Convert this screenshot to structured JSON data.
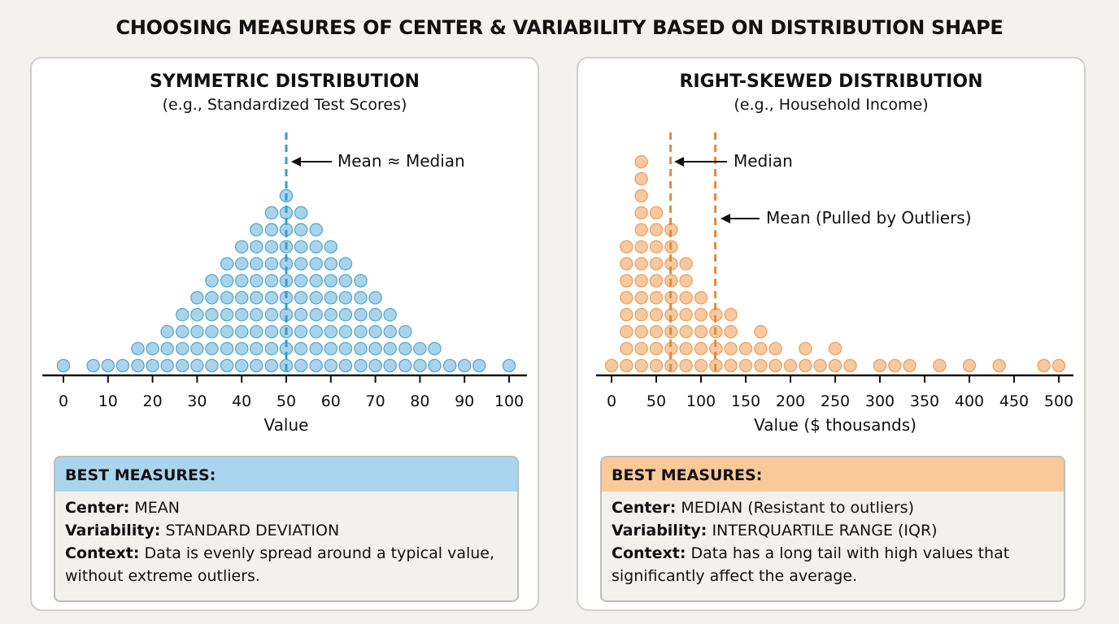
{
  "title": "CHOOSING MEASURES OF CENTER & VARIABILITY BASED ON DISTRIBUTION SHAPE",
  "colors": {
    "symmetric_fill": "#a8d4eb",
    "symmetric_stroke": "#5aa7cf",
    "symmetric_line": "#3a9bcb",
    "symmetric_header": "#a9d6ee",
    "skewed_fill": "#f8c89e",
    "skewed_stroke": "#e6a468",
    "skewed_line": "#e08a3c",
    "skewed_header": "#f9c998"
  },
  "left": {
    "title": "SYMMETRIC DISTRIBUTION",
    "subtitle": "(e.g., Standardized Test Scores)",
    "annotation": "Mean ≈ Median",
    "box": {
      "header": "BEST MEASURES:",
      "center_label": "Center:",
      "center_value": "MEAN",
      "variability_label": "Variability:",
      "variability_value": "STANDARD DEVIATION",
      "context_label": "Context:",
      "context_value": "Data is evenly spread around a typical value, without extreme outliers."
    }
  },
  "right": {
    "title": "RIGHT-SKEWED DISTRIBUTION",
    "subtitle": "(e.g., Household Income)",
    "annotation_median": "Median",
    "annotation_mean": "Mean (Pulled by Outliers)",
    "box": {
      "header": "BEST MEASURES:",
      "center_label": "Center:",
      "center_value": "MEDIAN (Resistant to outliers)",
      "variability_label": "Variability:",
      "variability_value": "INTERQUARTILE RANGE (IQR)",
      "context_label": "Context:",
      "context_value": "Data has a long tail with high values that significantly affect the average."
    }
  },
  "chart_data": [
    {
      "type": "scatter",
      "subtype": "dot plot",
      "xlabel": "Value",
      "xlim": [
        0,
        100
      ],
      "xticks": [
        0,
        10,
        20,
        30,
        40,
        50,
        60,
        70,
        80,
        90,
        100
      ],
      "grid": false,
      "mean_median_line": 50,
      "columns": [
        {
          "x": 0,
          "count": 1
        },
        {
          "x": 6.7,
          "count": 1
        },
        {
          "x": 10,
          "count": 1
        },
        {
          "x": 13.3,
          "count": 1
        },
        {
          "x": 16.7,
          "count": 2
        },
        {
          "x": 20,
          "count": 2
        },
        {
          "x": 23.3,
          "count": 3
        },
        {
          "x": 26.7,
          "count": 4
        },
        {
          "x": 30,
          "count": 5
        },
        {
          "x": 33.3,
          "count": 6
        },
        {
          "x": 36.7,
          "count": 7
        },
        {
          "x": 40,
          "count": 8
        },
        {
          "x": 43.3,
          "count": 9
        },
        {
          "x": 46.7,
          "count": 10
        },
        {
          "x": 50,
          "count": 11
        },
        {
          "x": 53.3,
          "count": 10
        },
        {
          "x": 56.7,
          "count": 9
        },
        {
          "x": 60,
          "count": 8
        },
        {
          "x": 63.3,
          "count": 7
        },
        {
          "x": 66.7,
          "count": 6
        },
        {
          "x": 70,
          "count": 5
        },
        {
          "x": 73.3,
          "count": 4
        },
        {
          "x": 76.7,
          "count": 3
        },
        {
          "x": 80,
          "count": 2
        },
        {
          "x": 83.3,
          "count": 2
        },
        {
          "x": 86.7,
          "count": 1
        },
        {
          "x": 90,
          "count": 1
        },
        {
          "x": 93.3,
          "count": 1
        },
        {
          "x": 100,
          "count": 1
        }
      ]
    },
    {
      "type": "scatter",
      "subtype": "dot plot",
      "xlabel": "Value ($ thousands)",
      "xlim": [
        0,
        500
      ],
      "xticks": [
        0,
        50,
        100,
        150,
        200,
        250,
        300,
        350,
        400,
        450,
        500
      ],
      "grid": false,
      "median_line": 66,
      "mean_line": 116,
      "columns": [
        {
          "x": 0,
          "count": 1
        },
        {
          "x": 16.7,
          "count": 8
        },
        {
          "x": 33.3,
          "count": 13
        },
        {
          "x": 50,
          "count": 10
        },
        {
          "x": 66.7,
          "count": 9
        },
        {
          "x": 83.3,
          "count": 7
        },
        {
          "x": 100,
          "count": 5
        },
        {
          "x": 116.7,
          "count": 4
        },
        {
          "x": 133.3,
          "count": 4
        },
        {
          "x": 150,
          "count": 2
        },
        {
          "x": 166.7,
          "count": 3
        },
        {
          "x": 183.3,
          "count": 2
        },
        {
          "x": 200,
          "count": 1
        },
        {
          "x": 216.7,
          "count": 2
        },
        {
          "x": 233.3,
          "count": 1
        },
        {
          "x": 250,
          "count": 2
        },
        {
          "x": 266.7,
          "count": 1
        },
        {
          "x": 300,
          "count": 1
        },
        {
          "x": 316.7,
          "count": 1
        },
        {
          "x": 333.3,
          "count": 1
        },
        {
          "x": 366.7,
          "count": 1
        },
        {
          "x": 400,
          "count": 1
        },
        {
          "x": 433.3,
          "count": 1
        },
        {
          "x": 483.3,
          "count": 1
        },
        {
          "x": 500,
          "count": 1
        }
      ]
    }
  ]
}
